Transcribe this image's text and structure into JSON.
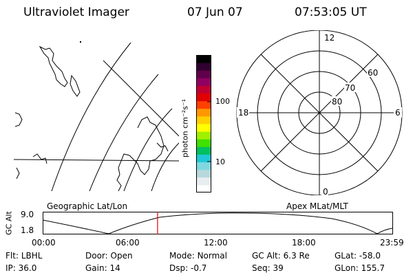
{
  "header": {
    "title": "Ultraviolet Imager",
    "date": "07 Jun 07",
    "time": "07:53:05 UT"
  },
  "colorbar": {
    "unit_label": "photon cm⁻²s⁻¹",
    "tick_100": "100",
    "tick_10": "10",
    "colors": [
      "#ffffff",
      "#e8eef0",
      "#b8d8dc",
      "#7fd8e0",
      "#20c8d8",
      "#00c060",
      "#40e000",
      "#a0f000",
      "#ffff00",
      "#ffd000",
      "#ff9800",
      "#ff4000",
      "#e00000",
      "#c00030",
      "#900060",
      "#60004a",
      "#300030",
      "#000000"
    ]
  },
  "left_panel": {
    "caption": "Geographic Lat/Lon"
  },
  "right_panel": {
    "caption": "Apex MLat/MLT",
    "lat_labels": [
      "80",
      "70",
      "60"
    ],
    "mlt_labels": [
      "12",
      "18",
      "6",
      "0"
    ]
  },
  "timeline": {
    "ylabel": "GC Alt",
    "ytick_top": "9.0",
    "ytick_bottom": "1.8",
    "xticks": [
      "00:00",
      "06:00",
      "12:00",
      "18:00",
      "23:59"
    ],
    "marker_color": "#e00000",
    "marker_time_hours": 7.885
  },
  "info": {
    "row1": [
      {
        "key": "Flt:",
        "value": "LBHL"
      },
      {
        "key": "Door:",
        "value": "Open"
      },
      {
        "key": "Mode:",
        "value": "Normal"
      },
      {
        "key": "GC Alt:",
        "value": "6.3 Re"
      },
      {
        "key": "GLat:",
        "value": "-58.0"
      }
    ],
    "row2": [
      {
        "key": "IP:",
        "value": "36.0"
      },
      {
        "key": "Gain:",
        "value": "14"
      },
      {
        "key": "Dsp:",
        "value": "-0.7"
      },
      {
        "key": "Seq:",
        "value": "39"
      },
      {
        "key": "GLon:",
        "value": "155.7"
      }
    ]
  }
}
